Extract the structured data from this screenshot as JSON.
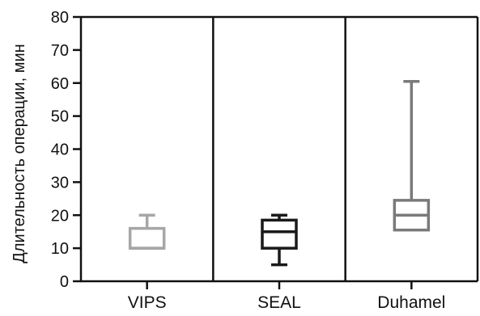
{
  "chart_data": {
    "type": "box",
    "title": "",
    "xlabel": "",
    "ylabel": "Длительность операции, мин",
    "ylim": [
      0,
      80
    ],
    "yticks": [
      0,
      10,
      20,
      30,
      40,
      50,
      60,
      70,
      80
    ],
    "categories": [
      "VIPS",
      "SEAL",
      "Duhamel"
    ],
    "boxes": [
      {
        "category": "VIPS",
        "min": 10,
        "q1": 10,
        "median": 10,
        "q3": 16,
        "max": 20,
        "color": "#a6a6a6"
      },
      {
        "category": "SEAL",
        "min": 5,
        "q1": 10,
        "median": 15,
        "q3": 18.5,
        "max": 20,
        "color": "#1a1a1a"
      },
      {
        "category": "Duhamel",
        "min": 15.5,
        "q1": 15.5,
        "median": 20,
        "q3": 24.5,
        "max": 60.5,
        "color": "#7a7a7a"
      }
    ],
    "grid": false,
    "legend": "none"
  }
}
